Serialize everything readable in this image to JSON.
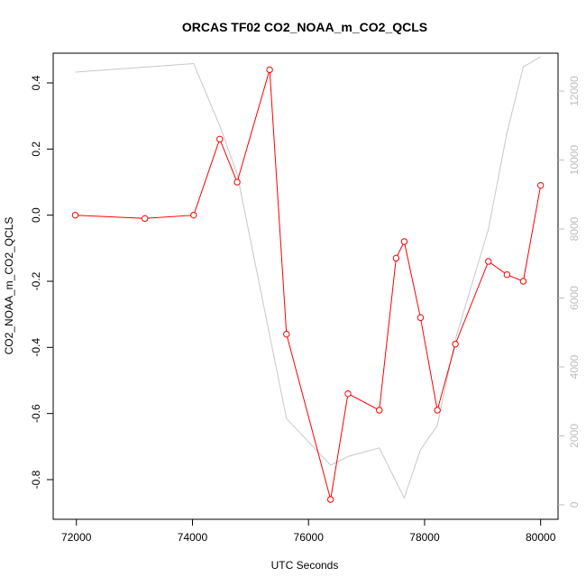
{
  "chart_data": {
    "type": "line",
    "title": "ORCAS TF02 CO2_NOAA_m_CO2_QCLS",
    "xlabel": "UTC Seconds",
    "ylabel": "CO2_NOAA_m_CO2_QCLS",
    "xlim": [
      71600,
      80300
    ],
    "ylim": [
      -0.92,
      0.49
    ],
    "y2lim": [
      -420,
      13100
    ],
    "x_ticks": [
      72000,
      74000,
      76000,
      78000,
      80000
    ],
    "y_ticks": [
      -0.8,
      -0.6,
      -0.4,
      -0.2,
      0.0,
      0.2,
      0.4
    ],
    "y2_ticks": [
      0,
      2000,
      4000,
      6000,
      8000,
      10000,
      12000
    ],
    "x_tick_labels": [
      "72000",
      "74000",
      "76000",
      "78000",
      "80000"
    ],
    "y_tick_labels": [
      "-0.8",
      "-0.6",
      "-0.4",
      "-0.2",
      "0.0",
      "0.2",
      "0.4"
    ],
    "y2_tick_labels": [
      "0",
      "2000",
      "4000",
      "6000",
      "8000",
      "10000",
      "12000"
    ],
    "grid": false,
    "series": [
      {
        "axis": "left",
        "color": "#ff0000",
        "markers": "open-circle",
        "x": [
          71980,
          73180,
          74020,
          74470,
          74770,
          75330,
          75620,
          76380,
          76680,
          77220,
          77510,
          77650,
          77930,
          78220,
          78530,
          79100,
          79420,
          79700,
          80000
        ],
        "y": [
          0.0,
          -0.01,
          0.0,
          0.23,
          0.1,
          0.44,
          -0.36,
          -0.86,
          -0.54,
          -0.59,
          -0.13,
          -0.08,
          -0.31,
          -0.59,
          -0.39,
          -0.14,
          -0.18,
          -0.2,
          0.09
        ]
      },
      {
        "axis": "right",
        "color": "#c8c8c8",
        "markers": "none",
        "x": [
          71980,
          74020,
          74470,
          74770,
          75620,
          76380,
          76680,
          77220,
          77650,
          77930,
          78220,
          78530,
          79100,
          79420,
          79700,
          80000
        ],
        "y": [
          12550,
          12800,
          11000,
          9600,
          2500,
          1150,
          1400,
          1650,
          200,
          1600,
          2300,
          4800,
          8000,
          10800,
          12700,
          13000
        ]
      }
    ]
  }
}
